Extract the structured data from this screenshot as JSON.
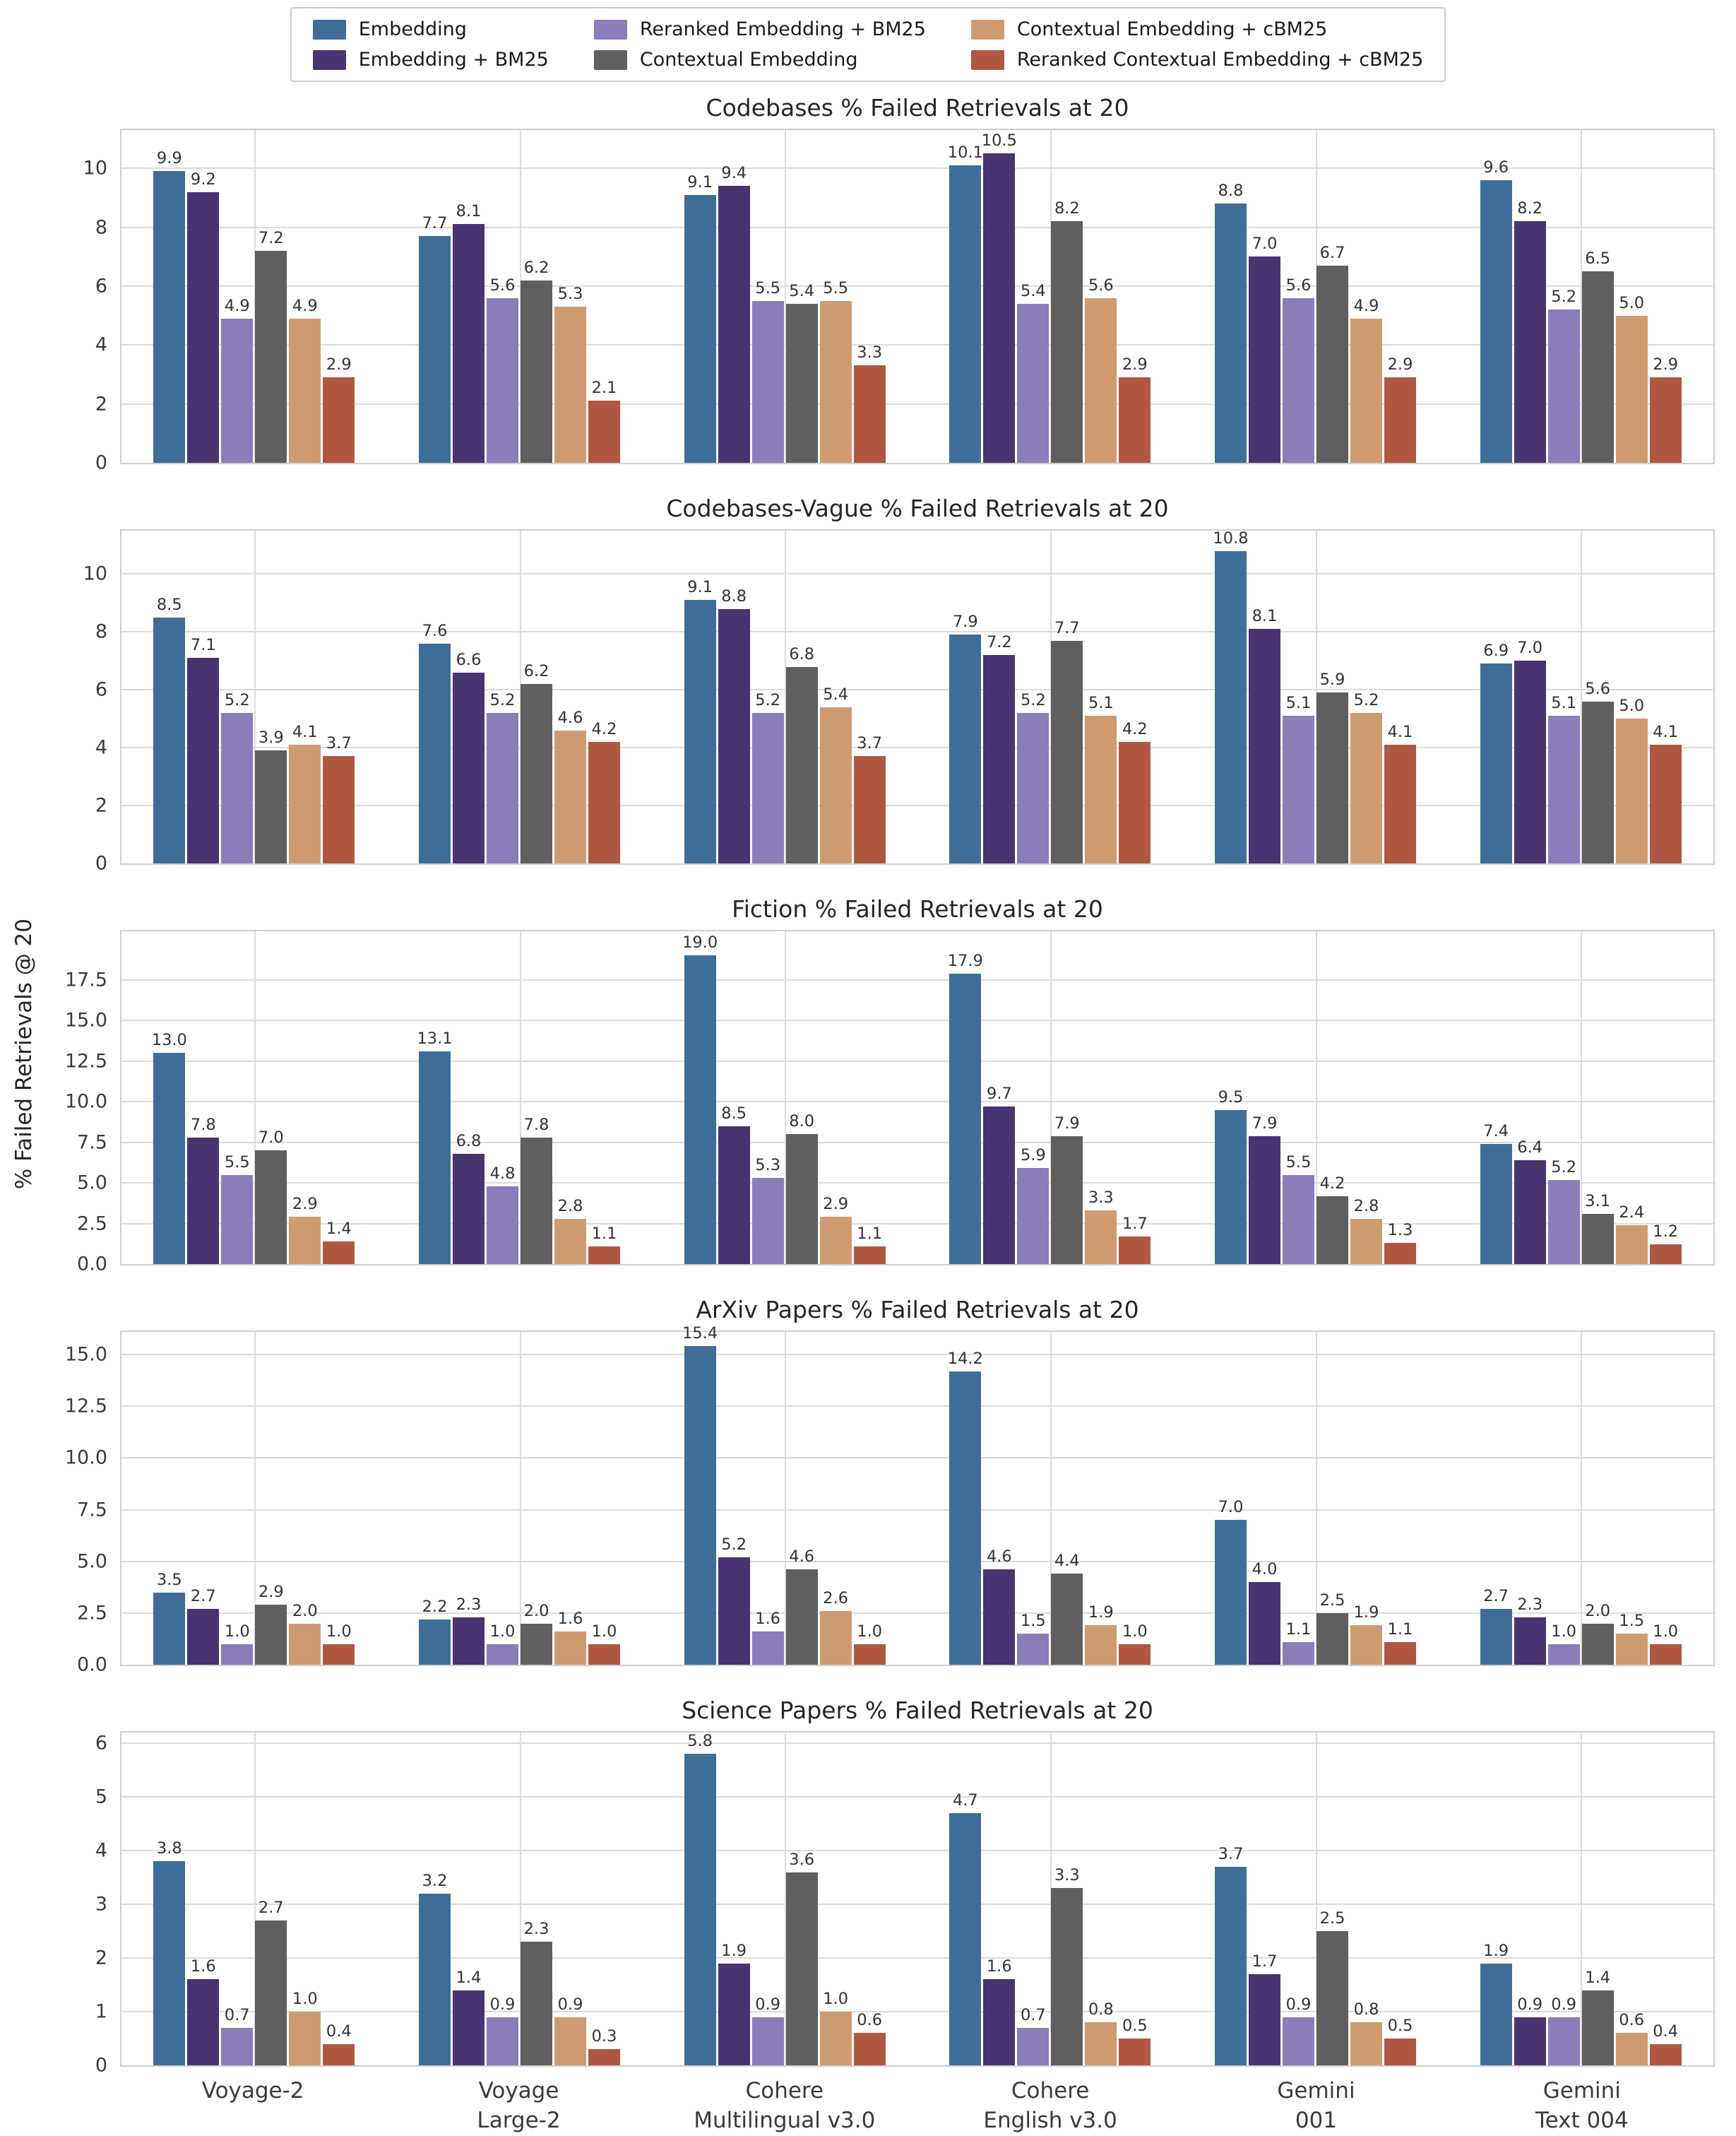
{
  "figure": {
    "ylabel": "% Failed Retrievals @ 20"
  },
  "legend": {
    "items": [
      {
        "label": "Embedding",
        "color": "#3E6E98"
      },
      {
        "label": "Embedding + BM25",
        "color": "#473470"
      },
      {
        "label": "Reranked Embedding + BM25",
        "color": "#8B7CBA"
      },
      {
        "label": "Contextual Embedding",
        "color": "#5F5F5F"
      },
      {
        "label": "Contextual Embedding + cBM25",
        "color": "#CE9B70"
      },
      {
        "label": "Reranked Contextual Embedding + cBM25",
        "color": "#B05742"
      }
    ]
  },
  "series_colors": [
    "#3E6E98",
    "#473470",
    "#8B7CBA",
    "#5F5F5F",
    "#CE9B70",
    "#B05742"
  ],
  "categories": [
    "Voyage-2",
    "Voyage Large-2",
    "Cohere Multilingual v3.0",
    "Cohere English v3.0",
    "Gemini 001",
    "Gemini Text 004"
  ],
  "category_display": [
    [
      "Voyage-2"
    ],
    [
      "Voyage",
      "Large-2"
    ],
    [
      "Cohere",
      "Multilingual v3.0"
    ],
    [
      "Cohere",
      "English v3.0"
    ],
    [
      "Gemini",
      "001"
    ],
    [
      "Gemini",
      "Text 004"
    ]
  ],
  "chart_data": [
    {
      "type": "bar",
      "title": "Codebases % Failed Retrievals at 20",
      "xlabel": "",
      "ylabel": "% Failed Retrievals @ 20",
      "grid": true,
      "legend_position": "top",
      "categories": [
        "Voyage-2",
        "Voyage Large-2",
        "Cohere Multilingual v3.0",
        "Cohere English v3.0",
        "Gemini 001",
        "Gemini Text 004"
      ],
      "yticks": [
        0,
        2,
        4,
        6,
        8,
        10
      ],
      "ytick_labels": [
        "0",
        "2",
        "4",
        "6",
        "8",
        "10"
      ],
      "ylim": [
        0,
        11.3
      ],
      "series": [
        {
          "name": "Embedding",
          "values": [
            9.9,
            7.7,
            9.1,
            10.1,
            8.8,
            9.6
          ]
        },
        {
          "name": "Embedding + BM25",
          "values": [
            9.2,
            8.1,
            9.4,
            10.5,
            7.0,
            8.2
          ]
        },
        {
          "name": "Reranked Embedding + BM25",
          "values": [
            4.9,
            5.6,
            5.5,
            5.4,
            5.6,
            5.2
          ]
        },
        {
          "name": "Contextual Embedding",
          "values": [
            7.2,
            6.2,
            5.4,
            8.2,
            6.7,
            6.5
          ]
        },
        {
          "name": "Contextual Embedding + cBM25",
          "values": [
            4.9,
            5.3,
            5.5,
            5.6,
            4.9,
            5.0
          ]
        },
        {
          "name": "Reranked Contextual Embedding + cBM25",
          "values": [
            2.9,
            2.1,
            3.3,
            2.9,
            2.9,
            2.9
          ]
        }
      ]
    },
    {
      "type": "bar",
      "title": "Codebases-Vague % Failed Retrievals at 20",
      "xlabel": "",
      "ylabel": "% Failed Retrievals @ 20",
      "grid": true,
      "legend_position": "top",
      "categories": [
        "Voyage-2",
        "Voyage Large-2",
        "Cohere Multilingual v3.0",
        "Cohere English v3.0",
        "Gemini 001",
        "Gemini Text 004"
      ],
      "yticks": [
        0,
        2,
        4,
        6,
        8,
        10
      ],
      "ytick_labels": [
        "0",
        "2",
        "4",
        "6",
        "8",
        "10"
      ],
      "ylim": [
        0,
        11.5
      ],
      "series": [
        {
          "name": "Embedding",
          "values": [
            8.5,
            7.6,
            9.1,
            7.9,
            10.8,
            6.9
          ]
        },
        {
          "name": "Embedding + BM25",
          "values": [
            7.1,
            6.6,
            8.8,
            7.2,
            8.1,
            7.0
          ]
        },
        {
          "name": "Reranked Embedding + BM25",
          "values": [
            5.2,
            5.2,
            5.2,
            5.2,
            5.1,
            5.1
          ]
        },
        {
          "name": "Contextual Embedding",
          "values": [
            3.9,
            6.2,
            6.8,
            7.7,
            5.9,
            5.6
          ]
        },
        {
          "name": "Contextual Embedding + cBM25",
          "values": [
            4.1,
            4.6,
            5.4,
            5.1,
            5.2,
            5.0
          ]
        },
        {
          "name": "Reranked Contextual Embedding + cBM25",
          "values": [
            3.7,
            4.2,
            3.7,
            4.2,
            4.1,
            4.1
          ]
        }
      ]
    },
    {
      "type": "bar",
      "title": "Fiction % Failed Retrievals at 20",
      "xlabel": "",
      "ylabel": "% Failed Retrievals @ 20",
      "grid": true,
      "legend_position": "top",
      "categories": [
        "Voyage-2",
        "Voyage Large-2",
        "Cohere Multilingual v3.0",
        "Cohere English v3.0",
        "Gemini 001",
        "Gemini Text 004"
      ],
      "yticks": [
        0,
        2.5,
        5,
        7.5,
        10,
        12.5,
        15,
        17.5
      ],
      "ytick_labels": [
        "0.0",
        "2.5",
        "5.0",
        "7.5",
        "10.0",
        "12.5",
        "15.0",
        "17.5"
      ],
      "ylim": [
        0,
        20.5
      ],
      "series": [
        {
          "name": "Embedding",
          "values": [
            13.0,
            13.1,
            19.0,
            17.9,
            9.5,
            7.4
          ]
        },
        {
          "name": "Embedding + BM25",
          "values": [
            7.8,
            6.8,
            8.5,
            9.7,
            7.9,
            6.4
          ]
        },
        {
          "name": "Reranked Embedding + BM25",
          "values": [
            5.5,
            4.8,
            5.3,
            5.9,
            5.5,
            5.2
          ]
        },
        {
          "name": "Contextual Embedding",
          "values": [
            7.0,
            7.8,
            8.0,
            7.9,
            4.2,
            3.1
          ]
        },
        {
          "name": "Contextual Embedding + cBM25",
          "values": [
            2.9,
            2.8,
            2.9,
            3.3,
            2.8,
            2.4
          ]
        },
        {
          "name": "Reranked Contextual Embedding + cBM25",
          "values": [
            1.4,
            1.1,
            1.1,
            1.7,
            1.3,
            1.2
          ]
        }
      ]
    },
    {
      "type": "bar",
      "title": "ArXiv Papers % Failed Retrievals at 20",
      "xlabel": "",
      "ylabel": "% Failed Retrievals @ 20",
      "grid": true,
      "legend_position": "top",
      "categories": [
        "Voyage-2",
        "Voyage Large-2",
        "Cohere Multilingual v3.0",
        "Cohere English v3.0",
        "Gemini 001",
        "Gemini Text 004"
      ],
      "yticks": [
        0,
        2.5,
        5,
        7.5,
        10,
        12.5,
        15
      ],
      "ytick_labels": [
        "0.0",
        "2.5",
        "5.0",
        "7.5",
        "10.0",
        "12.5",
        "15.0"
      ],
      "ylim": [
        0,
        16.1
      ],
      "series": [
        {
          "name": "Embedding",
          "values": [
            3.5,
            2.2,
            15.4,
            14.2,
            7.0,
            2.7
          ]
        },
        {
          "name": "Embedding + BM25",
          "values": [
            2.7,
            2.3,
            5.2,
            4.6,
            4.0,
            2.3
          ]
        },
        {
          "name": "Reranked Embedding + BM25",
          "values": [
            1.0,
            1.0,
            1.6,
            1.5,
            1.1,
            1.0
          ]
        },
        {
          "name": "Contextual Embedding",
          "values": [
            2.9,
            2.0,
            4.6,
            4.4,
            2.5,
            2.0
          ]
        },
        {
          "name": "Contextual Embedding + cBM25",
          "values": [
            2.0,
            1.6,
            2.6,
            1.9,
            1.9,
            1.5
          ]
        },
        {
          "name": "Reranked Contextual Embedding + cBM25",
          "values": [
            1.0,
            1.0,
            1.0,
            1.0,
            1.1,
            1.0
          ]
        }
      ]
    },
    {
      "type": "bar",
      "title": "Science Papers % Failed Retrievals at 20",
      "xlabel": "",
      "ylabel": "% Failed Retrievals @ 20",
      "grid": true,
      "legend_position": "top",
      "categories": [
        "Voyage-2",
        "Voyage Large-2",
        "Cohere Multilingual v3.0",
        "Cohere English v3.0",
        "Gemini 001",
        "Gemini Text 004"
      ],
      "yticks": [
        0,
        1,
        2,
        3,
        4,
        5,
        6
      ],
      "ytick_labels": [
        "0",
        "1",
        "2",
        "3",
        "4",
        "5",
        "6"
      ],
      "ylim": [
        0,
        6.2
      ],
      "series": [
        {
          "name": "Embedding",
          "values": [
            3.8,
            3.2,
            5.8,
            4.7,
            3.7,
            1.9
          ]
        },
        {
          "name": "Embedding + BM25",
          "values": [
            1.6,
            1.4,
            1.9,
            1.6,
            1.7,
            0.9
          ]
        },
        {
          "name": "Reranked Embedding + BM25",
          "values": [
            0.7,
            0.9,
            0.9,
            0.7,
            0.9,
            0.9
          ]
        },
        {
          "name": "Contextual Embedding",
          "values": [
            2.7,
            2.3,
            3.6,
            3.3,
            2.5,
            1.4
          ]
        },
        {
          "name": "Contextual Embedding + cBM25",
          "values": [
            1.0,
            0.9,
            1.0,
            0.8,
            0.8,
            0.6
          ]
        },
        {
          "name": "Reranked Contextual Embedding + cBM25",
          "values": [
            0.4,
            0.3,
            0.6,
            0.5,
            0.5,
            0.4
          ]
        }
      ]
    }
  ]
}
